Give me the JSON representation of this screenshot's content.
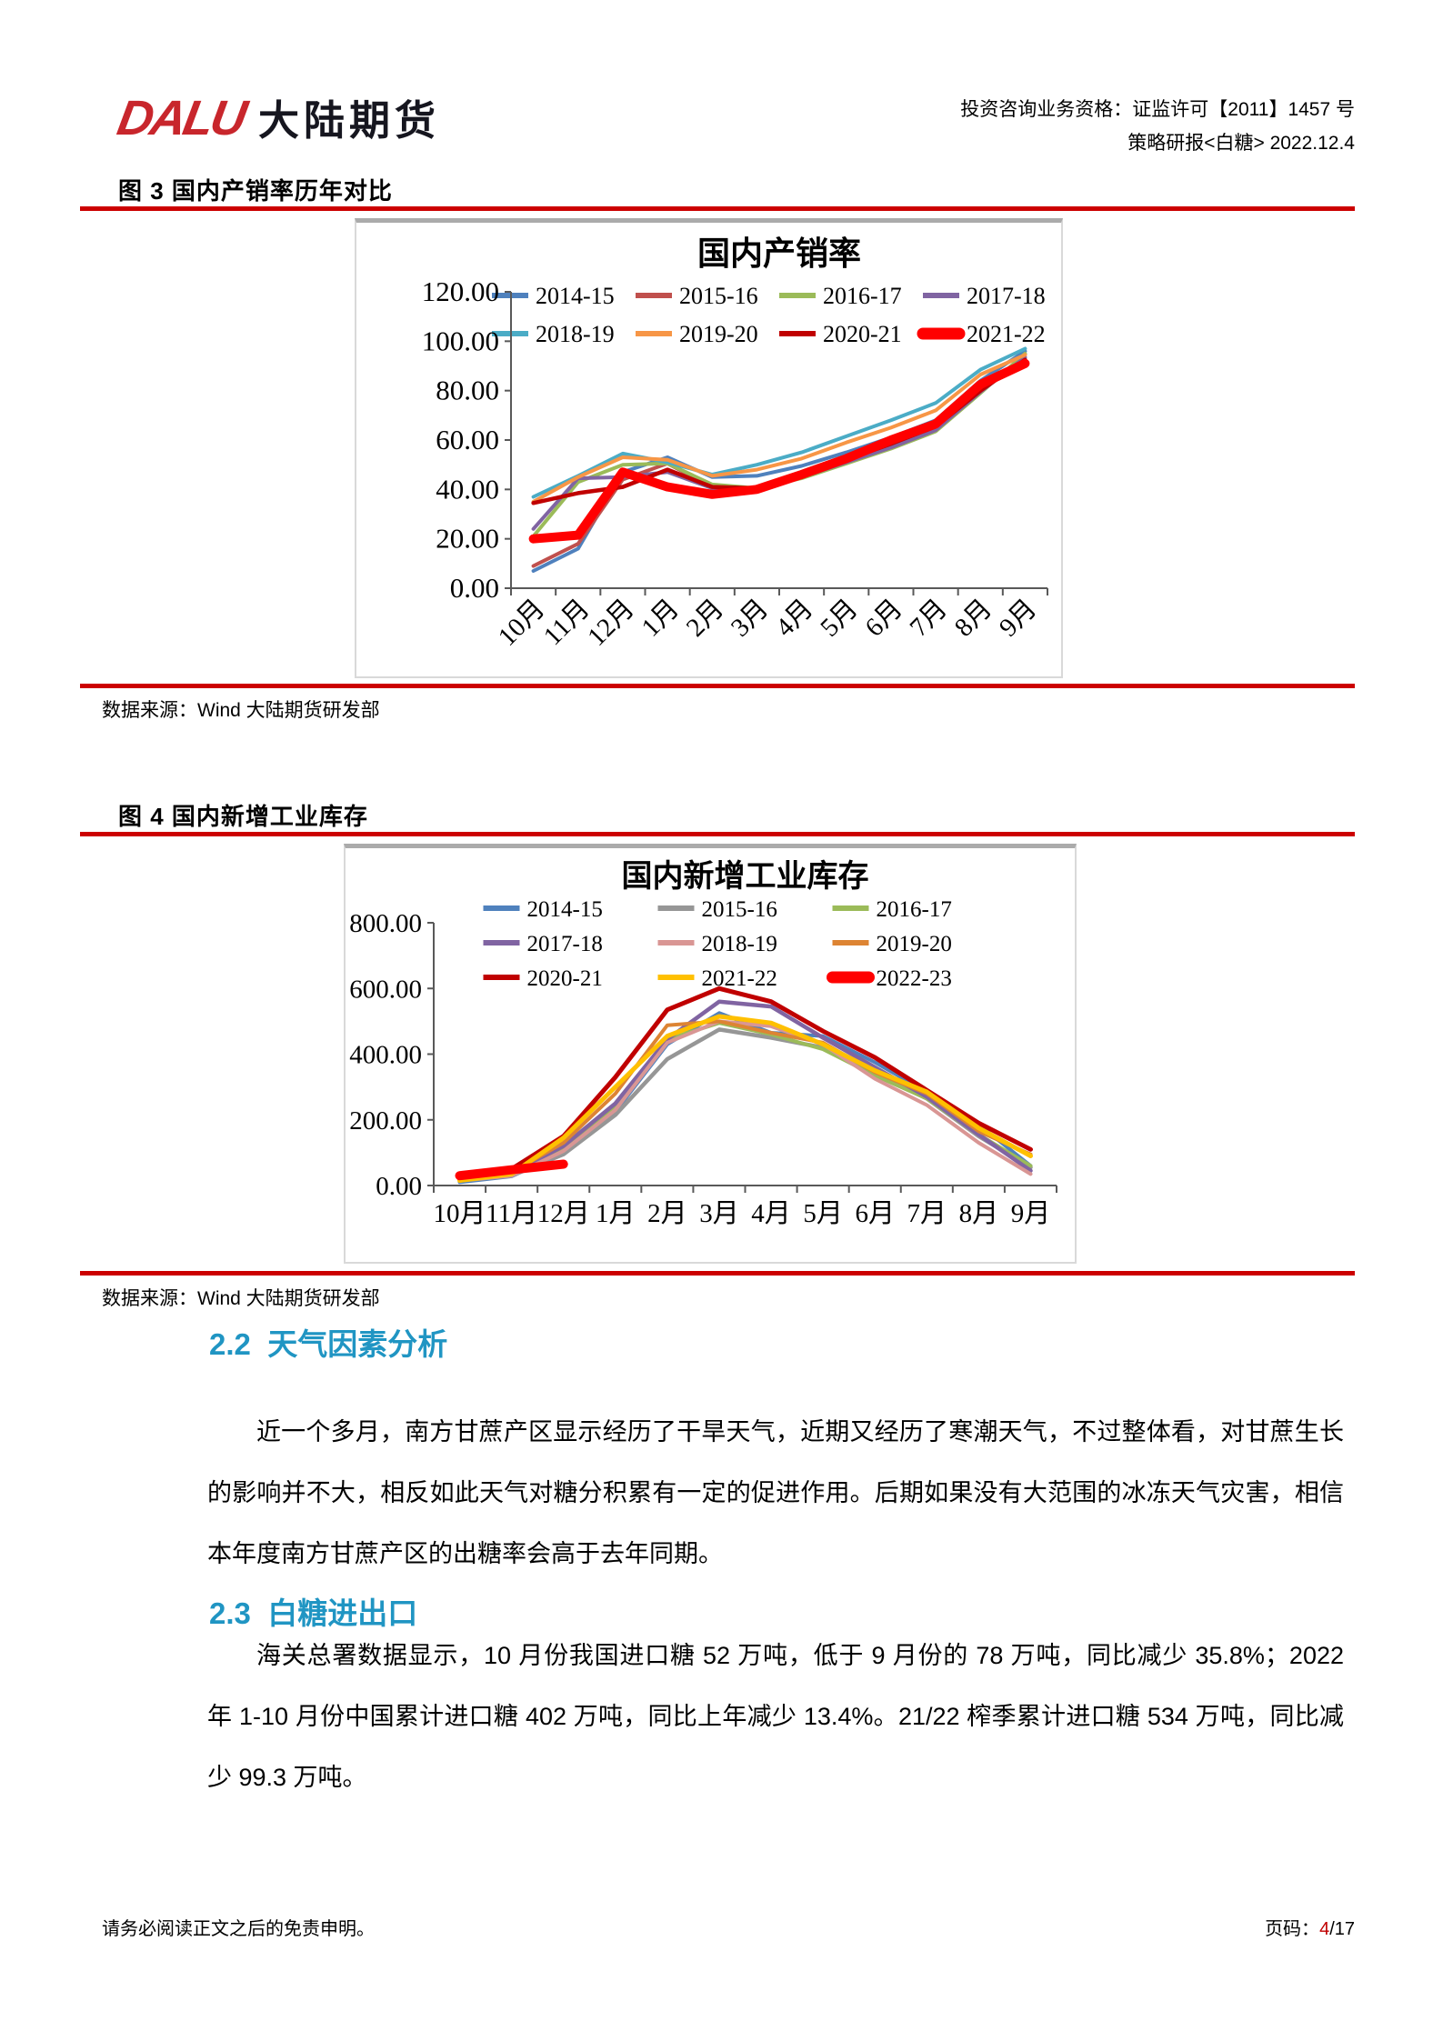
{
  "header": {
    "logo_en": "DALU",
    "logo_cn": "大陆期货",
    "qualification": "投资咨询业务资格：证监许可【2011】1457 号",
    "report_info": "策略研报<白糖> 2022.12.4"
  },
  "figure3": {
    "caption": "图 3 国内产销率历年对比",
    "source": "数据来源：Wind 大陆期货研发部"
  },
  "figure4": {
    "caption": "图 4 国内新增工业库存",
    "source": "数据来源：Wind 大陆期货研发部"
  },
  "section_2_2": {
    "heading": "2.2  天气因素分析",
    "paragraph": "近一个多月，南方甘蔗产区显示经历了干旱天气，近期又经历了寒潮天气，不过整体看，对甘蔗生长的影响并不大，相反如此天气对糖分积累有一定的促进作用。后期如果没有大范围的冰冻天气灾害，相信本年度南方甘蔗产区的出糖率会高于去年同期。"
  },
  "section_2_3": {
    "heading": "2.3  白糖进出口",
    "paragraph": "海关总署数据显示，10 月份我国进口糖 52 万吨，低于 9 月份的 78 万吨，同比减少 35.8%；2022 年 1-10 月份中国累计进口糖 402 万吨，同比上年减少 13.4%。21/22 榨季累计进口糖 534 万吨，同比减少 99.3 万吨。"
  },
  "footer": {
    "disclaimer": "请务必阅读正文之后的免责申明。",
    "page_label": "页码：",
    "page_current": "4",
    "page_rest": "/17"
  },
  "colors": {
    "rule_red": "#CC0000",
    "heading_teal": "#2095C3",
    "logo_red": "#C8262C",
    "page_number_red": "#C00000"
  },
  "chart_data": [
    {
      "type": "line",
      "title": "国内产销率",
      "legend_position": "top-inside",
      "grid": false,
      "categories": [
        "10月",
        "11月",
        "12月",
        "1月",
        "2月",
        "3月",
        "4月",
        "5月",
        "6月",
        "7月",
        "8月",
        "9月"
      ],
      "ylim": [
        0,
        120
      ],
      "ytick_step": 20,
      "ytick_format": "0.00",
      "x_labels_rotated": true,
      "series": [
        {
          "name": "2014-15",
          "color": "#4F81BD",
          "width": 4,
          "values": [
            7,
            16,
            47,
            53,
            45,
            45.5,
            49.5,
            55,
            61,
            68,
            84,
            96
          ]
        },
        {
          "name": "2015-16",
          "color": "#C0504D",
          "width": 4,
          "values": [
            9,
            18,
            44,
            50.5,
            41,
            40,
            45,
            51.5,
            58,
            65,
            79.5,
            94.5
          ]
        },
        {
          "name": "2016-17",
          "color": "#9BBB59",
          "width": 4,
          "values": [
            21,
            43,
            50,
            50.5,
            42,
            40.5,
            44.5,
            50.5,
            56.5,
            63.5,
            79,
            95
          ]
        },
        {
          "name": "2017-18",
          "color": "#8064A2",
          "width": 4,
          "values": [
            24,
            44.5,
            45,
            47,
            40.5,
            40,
            45,
            51,
            57,
            64,
            79.5,
            93.5
          ]
        },
        {
          "name": "2018-19",
          "color": "#4BACC6",
          "width": 4,
          "values": [
            37,
            45.5,
            54.5,
            51,
            46,
            50,
            55,
            61.5,
            68,
            75,
            88.5,
            97
          ]
        },
        {
          "name": "2019-20",
          "color": "#F79646",
          "width": 4,
          "values": [
            35,
            45,
            53,
            52,
            45.5,
            48,
            52.5,
            59,
            65,
            72,
            86.5,
            94.5
          ]
        },
        {
          "name": "2020-21",
          "color": "#C00000",
          "width": 4.5,
          "values": [
            34.5,
            38.5,
            41,
            48,
            41,
            40.5,
            45.5,
            52,
            58.5,
            65.5,
            80,
            92.5
          ]
        },
        {
          "name": "2021-22",
          "color": "#FF0000",
          "width": 10,
          "values": [
            20,
            21.5,
            47,
            41,
            38,
            40,
            46,
            52.5,
            60,
            66.5,
            82.5,
            91
          ]
        }
      ]
    },
    {
      "type": "line",
      "title": "国内新增工业库存",
      "legend_position": "top-inside",
      "grid": false,
      "categories": [
        "10月",
        "11月",
        "12月",
        "1月",
        "2月",
        "3月",
        "4月",
        "5月",
        "6月",
        "7月",
        "8月",
        "9月"
      ],
      "ylim": [
        0,
        800
      ],
      "ytick_step": 200,
      "ytick_format": "0.00",
      "x_labels_rotated": false,
      "series": [
        {
          "name": "2014-15",
          "color": "#4F81BD",
          "width": 4,
          "values": [
            10,
            28,
            100,
            225,
            430,
            525,
            465,
            455,
            375,
            285,
            185,
            60
          ]
        },
        {
          "name": "2015-16",
          "color": "#969696",
          "width": 4.5,
          "values": [
            15,
            30,
            95,
            215,
            385,
            475,
            450,
            420,
            340,
            265,
            150,
            55
          ]
        },
        {
          "name": "2016-17",
          "color": "#9BBB59",
          "width": 4,
          "values": [
            15,
            35,
            110,
            240,
            445,
            495,
            460,
            415,
            335,
            265,
            155,
            60
          ]
        },
        {
          "name": "2017-18",
          "color": "#8064A2",
          "width": 4.5,
          "values": [
            20,
            38,
            120,
            250,
            445,
            560,
            545,
            450,
            360,
            270,
            155,
            45
          ]
        },
        {
          "name": "2018-19",
          "color": "#D99694",
          "width": 4,
          "values": [
            15,
            30,
            105,
            230,
            435,
            500,
            485,
            430,
            325,
            245,
            130,
            35
          ]
        },
        {
          "name": "2019-20",
          "color": "#DD8433",
          "width": 4,
          "values": [
            20,
            40,
            130,
            280,
            488,
            500,
            465,
            435,
            345,
            280,
            165,
            95
          ]
        },
        {
          "name": "2020-21",
          "color": "#C00000",
          "width": 5,
          "values": [
            25,
            50,
            150,
            330,
            535,
            600,
            560,
            470,
            390,
            290,
            190,
            110
          ]
        },
        {
          "name": "2021-22",
          "color": "#FFC000",
          "width": 5,
          "values": [
            15,
            35,
            145,
            300,
            455,
            515,
            495,
            430,
            350,
            285,
            175,
            90
          ]
        },
        {
          "name": "2022-23",
          "color": "#FF0000",
          "width": 10,
          "values": [
            30,
            48,
            65,
            null,
            null,
            null,
            null,
            null,
            null,
            null,
            null,
            null
          ]
        }
      ]
    }
  ]
}
